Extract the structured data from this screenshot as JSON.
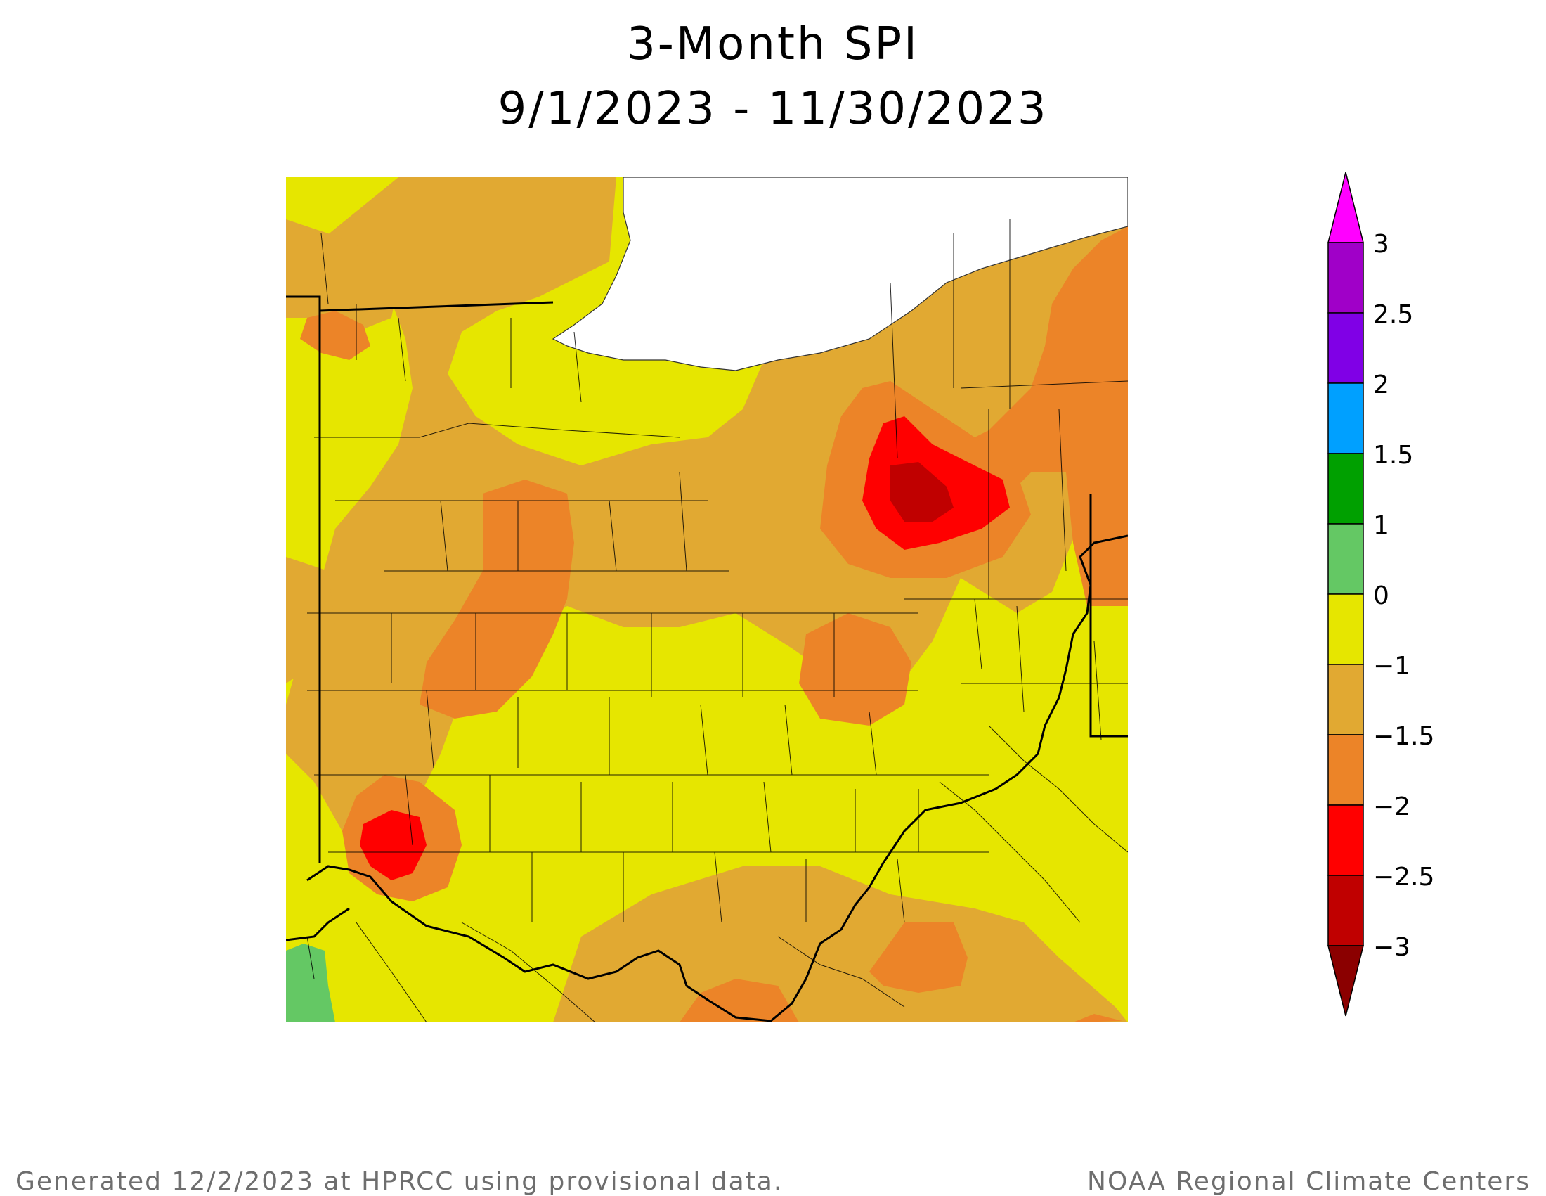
{
  "title_line1": "3-Month SPI",
  "title_line2": "9/1/2023 - 11/30/2023",
  "footer_left": "Generated 12/2/2023 at HPRCC using provisional data.",
  "footer_right": "NOAA Regional Climate Centers",
  "legend": {
    "tick_labels": [
      "3",
      "2.5",
      "2",
      "1.5",
      "1",
      "0",
      "−1",
      "−1.5",
      "−2",
      "−2.5",
      "−3"
    ],
    "bins": [
      {
        "range": "> 3",
        "color": "#ff00ff"
      },
      {
        "range": "2.5 to 3",
        "color": "#a000c8"
      },
      {
        "range": "2 to 2.5",
        "color": "#8000e6"
      },
      {
        "range": "1.5 to 2",
        "color": "#00a0ff"
      },
      {
        "range": "1 to 1.5",
        "color": "#00a000"
      },
      {
        "range": "0 to 1",
        "color": "#64c864"
      },
      {
        "range": "-1 to 0",
        "color": "#e6e600"
      },
      {
        "range": "-1.5 to -1",
        "color": "#e1a932"
      },
      {
        "range": "-2 to -1.5",
        "color": "#ec8428"
      },
      {
        "range": "-2.5 to -2",
        "color": "#ff0000"
      },
      {
        "range": "-3 to -2.5",
        "color": "#c00000"
      },
      {
        "range": "< -3",
        "color": "#8b0000"
      }
    ]
  },
  "map": {
    "region": "Ohio and surrounding areas",
    "water_body": "Lake Erie",
    "background_class": "-1 to 0",
    "features": [
      {
        "name": "lake-erie",
        "fill": "#ffffff"
      },
      {
        "name": "orange-band-class-neg1.5-neg1",
        "color": "#e1a932"
      },
      {
        "name": "orange-zone-class-neg2-neg1.5",
        "color": "#ec8428"
      },
      {
        "name": "red-core-northeast-ohio",
        "color": "#ff0000"
      },
      {
        "name": "darkred-core-northeast-ohio",
        "color": "#c00000"
      },
      {
        "name": "red-core-southwest-ohio",
        "color": "#ff0000"
      },
      {
        "name": "green-patch-southwest-corner",
        "color": "#64c864"
      }
    ]
  }
}
